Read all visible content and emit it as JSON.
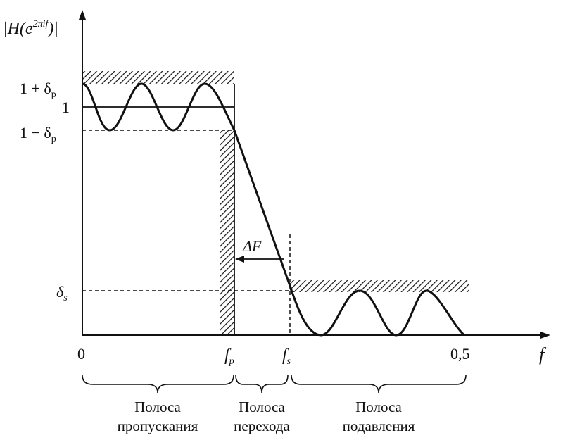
{
  "axes": {
    "y_label": {
      "main": "|H(e",
      "sup": "2πif",
      "end": ")|"
    },
    "x_label": "f",
    "y_ticks": {
      "upper": {
        "main": "1 + δ",
        "sub": "p"
      },
      "one": "1",
      "lower": {
        "main": "1 − δ",
        "sub": "p"
      },
      "stop": {
        "main": "δ",
        "sub": "s"
      }
    },
    "x_ticks": {
      "zero": "0",
      "fp": {
        "main": "f",
        "sub": "p"
      },
      "fs": {
        "main": "f",
        "sub": "s"
      },
      "half": "0,5"
    }
  },
  "annotations": {
    "delta_f": "ΔF"
  },
  "bands": {
    "passband": {
      "line1": "Полоса",
      "line2": "пропускания"
    },
    "transition": {
      "line1": "Полоса",
      "line2": "перехода"
    },
    "stopband": {
      "line1": "Полоса",
      "line2": "подавления"
    }
  },
  "colors": {
    "ink": "#111111",
    "background": "#ffffff"
  }
}
